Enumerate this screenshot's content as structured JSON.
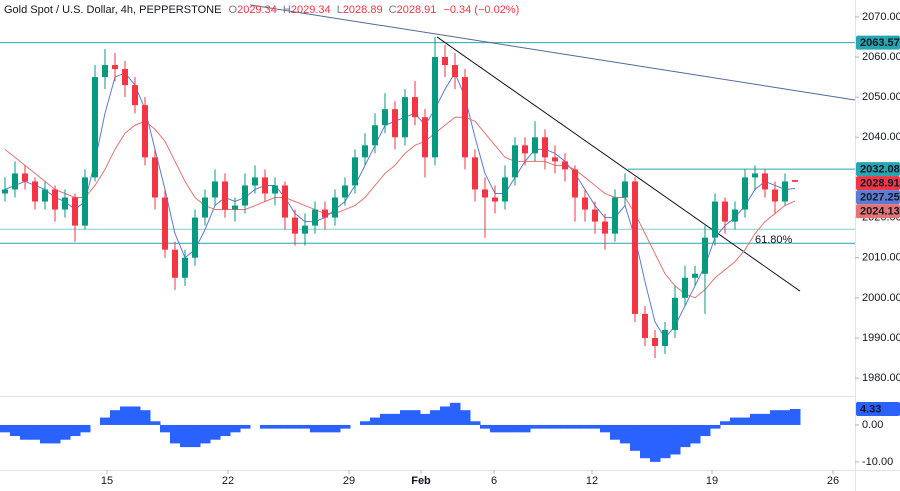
{
  "chart_data": [
    {
      "type": "candlestick",
      "header": {
        "symbol": "Gold Spot / U.S. Dollar, 4h, PEPPERSTONE",
        "o": "O",
        "h": "H",
        "l": "L",
        "c": "C",
        "change": "−0.34 (−0.02%)"
      },
      "up_color": "#089981",
      "down_color": "#f23645",
      "candles": {
        "open": [
          2026,
          2027,
          2031,
          2029,
          2024,
          2027,
          2022,
          2025,
          2018,
          2030,
          2055,
          2058,
          2057,
          2053,
          2048,
          2035,
          2025,
          2012,
          2005,
          2010,
          2020,
          2025,
          2029,
          2022,
          2023,
          2028,
          2030,
          2026,
          2028,
          2020,
          2016,
          2018,
          2022,
          2020,
          2025,
          2028,
          2035,
          2038,
          2043,
          2047,
          2040,
          2050,
          2045,
          2035,
          2060,
          2058,
          2055,
          2035,
          2027,
          2025,
          2024,
          2030,
          2038,
          2036,
          2040,
          2035,
          2034,
          2032,
          2025,
          2022,
          2019,
          2016,
          2025,
          2029,
          1996,
          1990,
          1988,
          1992,
          2000,
          2005,
          2006,
          2015,
          2024,
          2019,
          2022,
          2030,
          2031,
          2027,
          2024,
          2029.34
        ],
        "high": [
          2030,
          2034,
          2033,
          2030,
          2029,
          2028,
          2027,
          2026,
          2032,
          2058,
          2062,
          2061,
          2059,
          2055,
          2050,
          2037,
          2027,
          2014,
          2012,
          2022,
          2027,
          2032,
          2031,
          2025,
          2031,
          2033,
          2032,
          2030,
          2029,
          2022,
          2021,
          2024,
          2024,
          2027,
          2030,
          2037,
          2041,
          2046,
          2051,
          2049,
          2052,
          2054,
          2047,
          2065,
          2063,
          2061,
          2057,
          2037,
          2030,
          2028,
          2033,
          2040,
          2040,
          2044,
          2042,
          2038,
          2036,
          2033,
          2027,
          2024,
          2021,
          2027,
          2031,
          2030,
          1998,
          1992,
          1994,
          2003,
          2008,
          2008,
          2018,
          2026,
          2025,
          2024,
          2032,
          2033,
          2032,
          2029,
          2031,
          2029.34
        ],
        "low": [
          2024,
          2025,
          2027,
          2022,
          2022,
          2019,
          2020,
          2014,
          2017,
          2029,
          2052,
          2054,
          2050,
          2046,
          2033,
          2022,
          2010,
          2002,
          2003,
          2008,
          2018,
          2023,
          2020,
          2019,
          2021,
          2026,
          2024,
          2023,
          2017,
          2013,
          2013,
          2016,
          2017,
          2018,
          2023,
          2026,
          2033,
          2036,
          2041,
          2037,
          2038,
          2043,
          2030,
          2033,
          2055,
          2052,
          2032,
          2024,
          2015,
          2021,
          2022,
          2028,
          2033,
          2034,
          2032,
          2031,
          2029,
          2019,
          2019,
          2016,
          2012,
          2014,
          2023,
          1994,
          1988,
          1985,
          1986,
          1990,
          1998,
          2003,
          1996,
          2013,
          2016,
          2017,
          2020,
          2027,
          2025,
          2021,
          2023,
          2028.89
        ],
        "close": [
          2027,
          2031,
          2029,
          2024,
          2027,
          2022,
          2025,
          2018,
          2030,
          2055,
          2058,
          2057,
          2053,
          2048,
          2035,
          2025,
          2012,
          2005,
          2010,
          2020,
          2025,
          2029,
          2022,
          2023,
          2028,
          2030,
          2026,
          2028,
          2020,
          2016,
          2018,
          2022,
          2020,
          2025,
          2028,
          2035,
          2038,
          2043,
          2047,
          2040,
          2050,
          2045,
          2035,
          2060,
          2058,
          2055,
          2035,
          2027,
          2025,
          2024,
          2030,
          2038,
          2036,
          2040,
          2035,
          2034,
          2032,
          2025,
          2022,
          2019,
          2016,
          2025,
          2029,
          1996,
          1990,
          1988,
          1992,
          2000,
          2005,
          2006,
          2015,
          2024,
          2019,
          2022,
          2030,
          2031,
          2027,
          2024,
          2029,
          2028.91
        ]
      },
      "series": [
        {
          "color": "#5b7bd5",
          "values": [
            2027,
            2028,
            2029,
            2028,
            2027,
            2025,
            2024,
            2022,
            2024,
            2034,
            2046,
            2055,
            2056,
            2053,
            2047,
            2037,
            2027,
            2016,
            2010,
            2012,
            2017,
            2023,
            2025,
            2024,
            2025,
            2027,
            2028,
            2028,
            2025,
            2021,
            2019,
            2019,
            2020,
            2022,
            2024,
            2028,
            2033,
            2038,
            2043,
            2044,
            2045,
            2046,
            2043,
            2047,
            2052,
            2056,
            2050,
            2040,
            2031,
            2026,
            2026,
            2030,
            2034,
            2037,
            2037,
            2036,
            2034,
            2031,
            2027,
            2023,
            2020,
            2020,
            2023,
            2015,
            2004,
            1994,
            1990,
            1993,
            1998,
            2003,
            2008,
            2015,
            2018,
            2020,
            2023,
            2027,
            2029,
            2028,
            2027,
            2027.25
          ]
        },
        {
          "color": "#e57373",
          "values": [
            2037,
            2035,
            2033,
            2031,
            2029,
            2027,
            2026,
            2025,
            2025,
            2028,
            2032,
            2037,
            2041,
            2043,
            2044,
            2042,
            2039,
            2034,
            2029,
            2025,
            2023,
            2022,
            2022,
            2022,
            2022,
            2023,
            2024,
            2025,
            2025,
            2024,
            2023,
            2022,
            2021,
            2021,
            2022,
            2023,
            2025,
            2028,
            2031,
            2033,
            2036,
            2038,
            2039,
            2041,
            2043,
            2045,
            2045,
            2044,
            2041,
            2038,
            2035,
            2034,
            2034,
            2034,
            2034,
            2033,
            2033,
            2032,
            2030,
            2028,
            2026,
            2025,
            2025,
            2021,
            2016,
            2011,
            2006,
            2003,
            2001,
            2000,
            2002,
            2005,
            2007,
            2009,
            2012,
            2016,
            2019,
            2021,
            2023,
            2024.13
          ]
        }
      ],
      "levels": [
        {
          "value": 2063.57,
          "x_start": 0,
          "color": "#26a6b0",
          "badge": true
        },
        {
          "value": 2032.08,
          "x_start": 62.8,
          "color": "#26a6b0",
          "badge": true
        },
        {
          "value": 2017.1,
          "x_start": 0,
          "color": "#7fcfd3",
          "badge": false
        },
        {
          "value": 2013.6,
          "x_start": 0,
          "color": "#26a6b0",
          "badge": false,
          "label": "61.80%"
        }
      ],
      "trendlines": [
        {
          "points": [
            [
              43.7,
              2065
            ],
            [
              80,
              2001.7
            ]
          ],
          "color": "#131722"
        },
        {
          "points": [
            [
              25,
              2073
            ],
            [
              85.5,
              2049.3
            ]
          ],
          "color": "#4f6a96"
        }
      ],
      "xlim": [
        0,
        85.5
      ],
      "xticks": [
        {
          "value": 10.7,
          "label": "15"
        },
        {
          "value": 22.8,
          "label": "22"
        },
        {
          "value": 34.9,
          "label": "29"
        },
        {
          "value": 42.1,
          "label": "Feb"
        },
        {
          "value": 49.4,
          "label": "6"
        },
        {
          "value": 59.2,
          "label": "12"
        },
        {
          "value": 71.2,
          "label": "19"
        },
        {
          "value": 83.3,
          "label": "26"
        }
      ],
      "ylim": [
        1975.8,
        2074.2
      ],
      "yticks": [
        {
          "value": 2070,
          "label": "2070.00"
        },
        {
          "value": 2060,
          "label": "2060.00"
        },
        {
          "value": 2050,
          "label": "2050.00"
        },
        {
          "value": 2040,
          "label": "2040.00"
        },
        {
          "value": 2030,
          "label": "2030.00"
        },
        {
          "value": 2020,
          "label": "2020.00"
        },
        {
          "value": 2010,
          "label": "2010.00"
        },
        {
          "value": 2000,
          "label": "2000.00"
        },
        {
          "value": 1990,
          "label": "1990.00"
        },
        {
          "value": 1980,
          "label": "1980.00"
        }
      ]
    },
    {
      "type": "area",
      "color": "#2962ff",
      "values": [
        -2,
        -3,
        -4,
        -4,
        -5,
        -5,
        -4,
        -3,
        -2,
        0,
        2,
        4,
        5,
        5,
        4,
        1,
        -2,
        -5,
        -6,
        -6,
        -5,
        -4,
        -3,
        -2,
        -1,
        0,
        -1,
        -1,
        -1,
        -1,
        -1,
        -2,
        -2,
        -2,
        -1,
        0,
        1,
        2,
        3,
        3,
        4,
        4,
        3,
        4,
        5,
        6,
        4,
        1,
        -1,
        -2,
        -2,
        -2,
        -2,
        -1,
        -1,
        -1,
        -1,
        -1,
        -1,
        -1,
        -2,
        -4,
        -5,
        -7,
        -9,
        -10,
        -9,
        -8,
        -6,
        -5,
        -3,
        -1,
        1,
        2,
        2,
        3,
        3,
        4,
        4,
        4.33
      ],
      "xlim": [
        0,
        85.5
      ],
      "ylim": [
        -12.2,
        7.3
      ],
      "yticks": [
        {
          "value": 0,
          "label": "0.00"
        },
        {
          "value": -10,
          "label": "-10.00"
        }
      ]
    }
  ]
}
